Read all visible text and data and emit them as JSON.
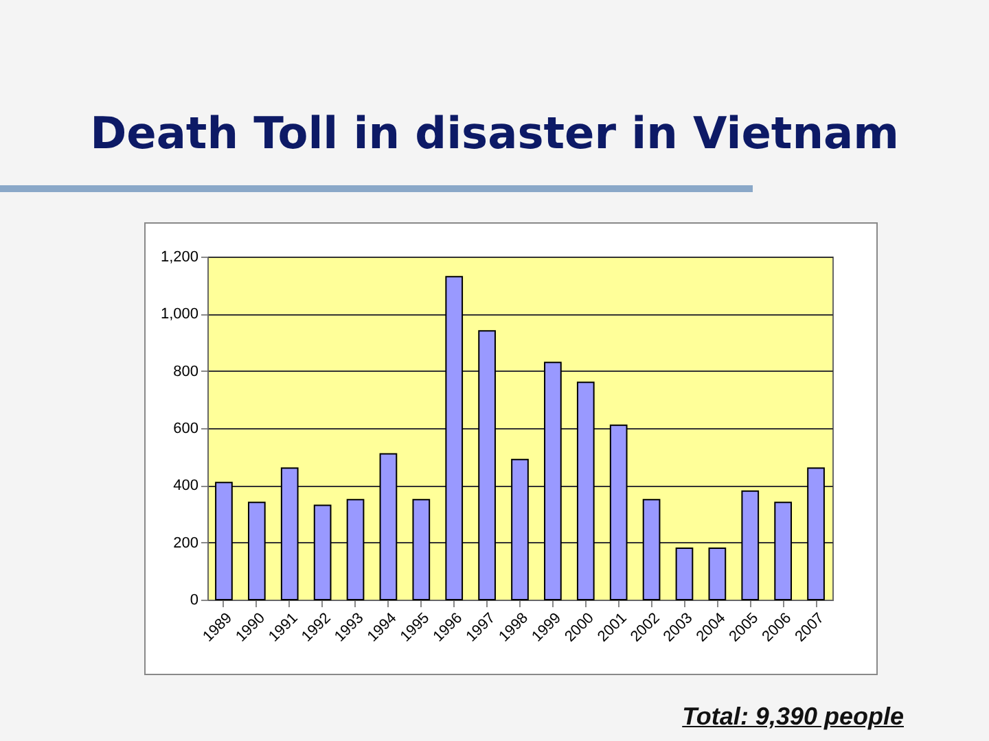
{
  "chart_data": {
    "type": "bar",
    "title": "Death Toll in disaster in Vietnam",
    "categories": [
      "1989",
      "1990",
      "1991",
      "1992",
      "1993",
      "1994",
      "1995",
      "1996",
      "1997",
      "1998",
      "1999",
      "2000",
      "2001",
      "2002",
      "2003",
      "2004",
      "2005",
      "2006",
      "2007"
    ],
    "values": [
      410,
      340,
      460,
      330,
      350,
      510,
      350,
      1130,
      940,
      490,
      830,
      760,
      610,
      350,
      180,
      180,
      380,
      340,
      460
    ],
    "color": "#9999ff",
    "ylim": [
      0,
      1200
    ],
    "yticks": [
      {
        "value": 0,
        "label": "0"
      },
      {
        "value": 200,
        "label": "200"
      },
      {
        "value": 400,
        "label": "400"
      },
      {
        "value": 600,
        "label": "600"
      },
      {
        "value": 800,
        "label": "800"
      },
      {
        "value": 1000,
        "label": "1,000"
      },
      {
        "value": 1200,
        "label": "1,200"
      }
    ],
    "grid": "y",
    "annotations": [
      "Total: 9,390 people"
    ]
  }
}
